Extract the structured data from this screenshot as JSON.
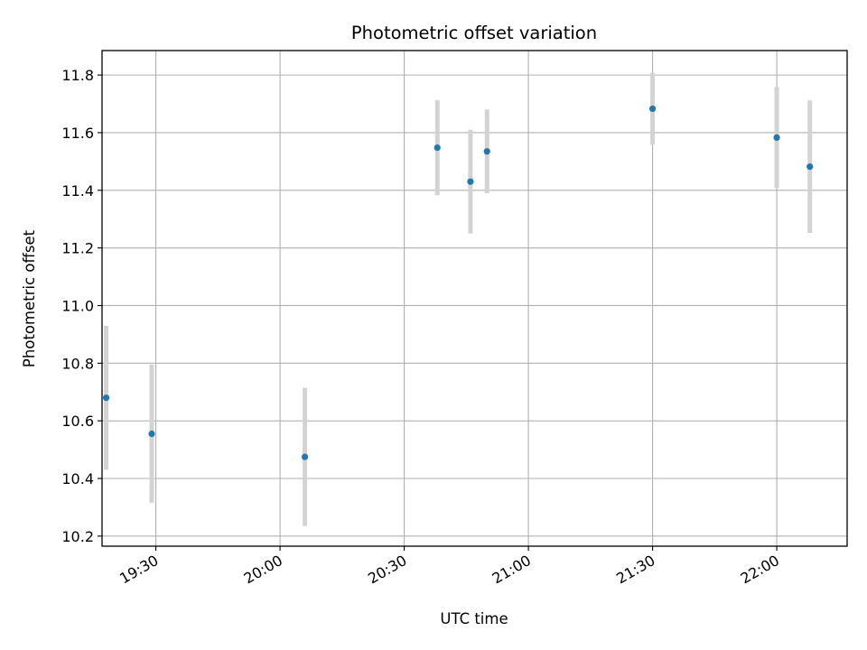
{
  "chart_data": {
    "type": "scatter",
    "title": "Photometric offset variation",
    "xlabel": "UTC time",
    "ylabel": "Photometric offset",
    "x_ticks": [
      "19:30",
      "20:00",
      "20:30",
      "21:00",
      "21:30",
      "22:00"
    ],
    "y_ticks": [
      "10.2",
      "10.4",
      "10.6",
      "10.8",
      "11.0",
      "11.2",
      "11.4",
      "11.6",
      "11.8"
    ],
    "xlim": [
      "19:17",
      "22:17"
    ],
    "ylim": [
      10.165,
      11.885
    ],
    "grid": true,
    "marker_color": "#1f77b4",
    "errorbar_color": "#d3d3d3",
    "points": [
      {
        "time": "19:18",
        "value": 10.68,
        "error": 0.25
      },
      {
        "time": "19:29",
        "value": 10.555,
        "error": 0.24
      },
      {
        "time": "20:06",
        "value": 10.475,
        "error": 0.24
      },
      {
        "time": "20:38",
        "value": 11.548,
        "error": 0.165
      },
      {
        "time": "20:46",
        "value": 11.43,
        "error": 0.18
      },
      {
        "time": "20:50",
        "value": 11.535,
        "error": 0.145
      },
      {
        "time": "21:30",
        "value": 11.683,
        "error": 0.125
      },
      {
        "time": "22:00",
        "value": 11.583,
        "error": 0.175
      },
      {
        "time": "22:08",
        "value": 11.482,
        "error": 0.23
      }
    ]
  }
}
